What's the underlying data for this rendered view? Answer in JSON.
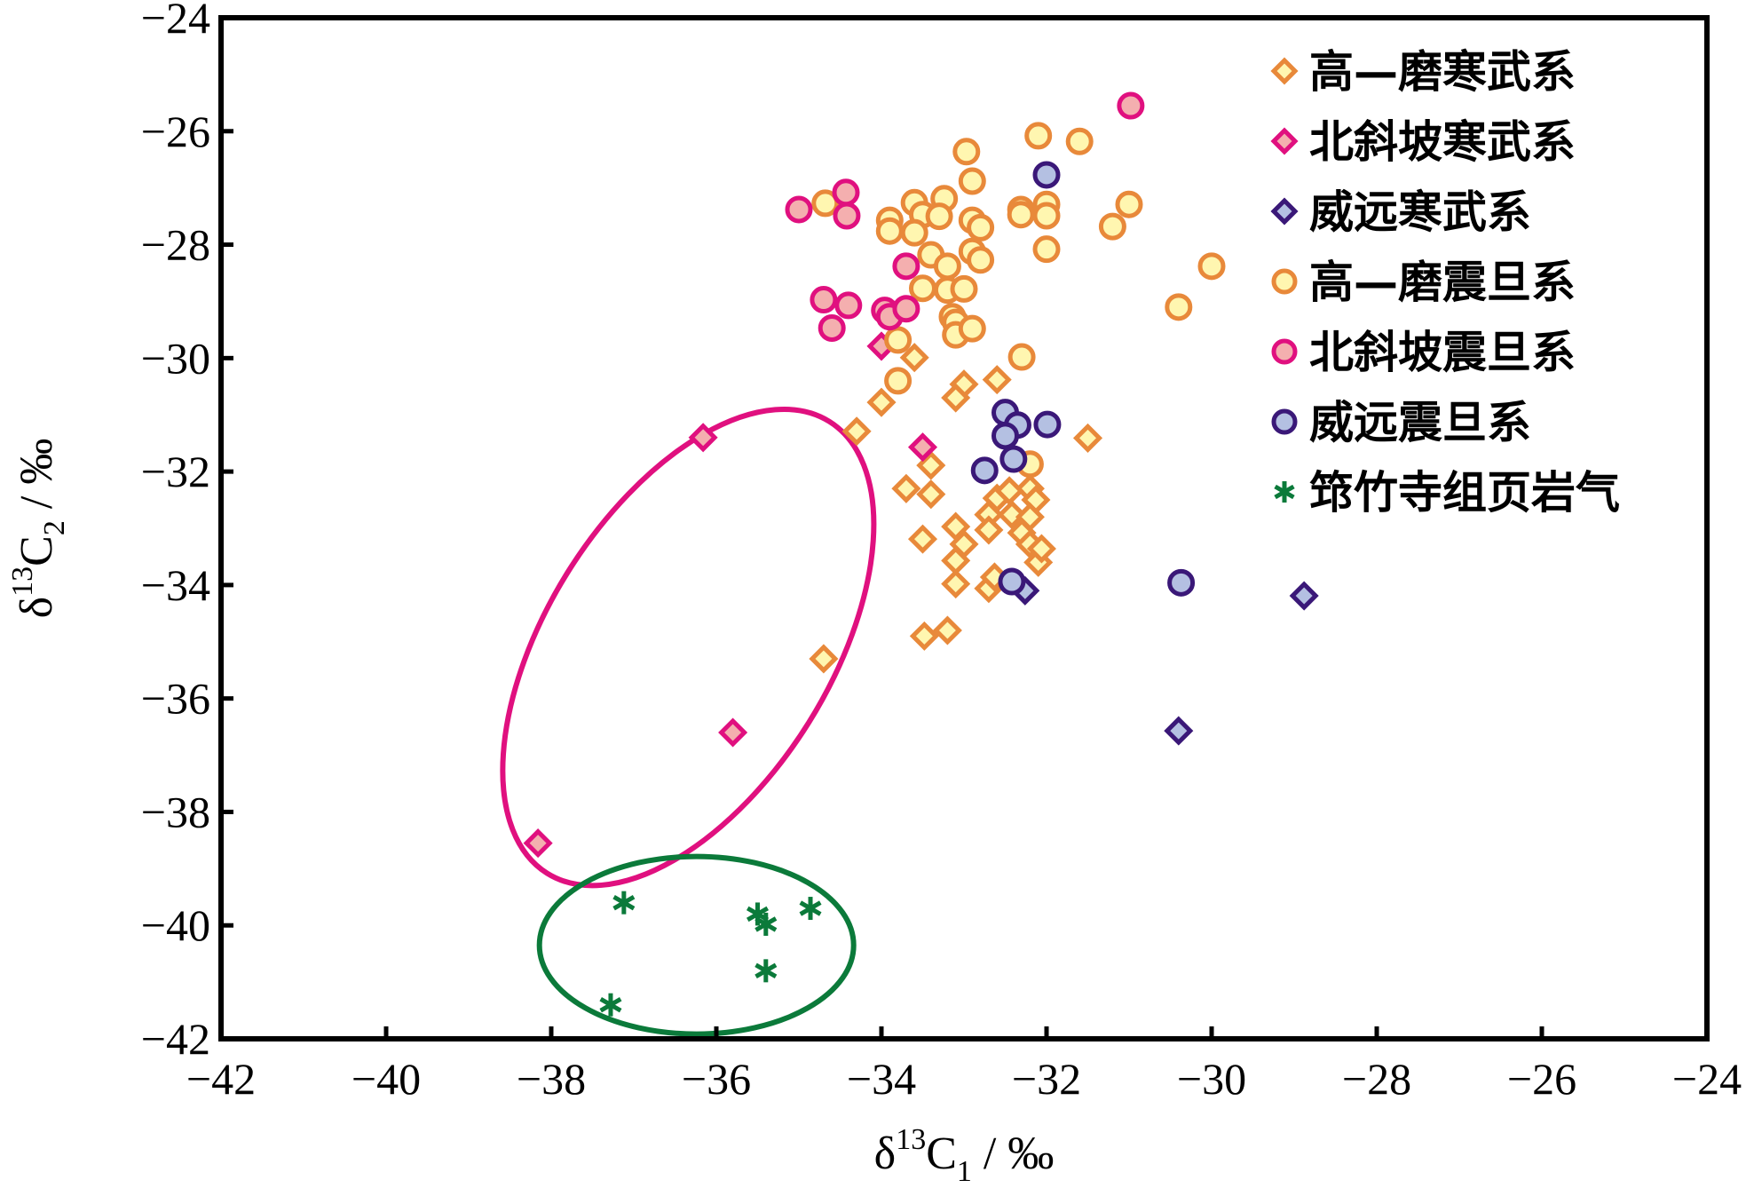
{
  "chart_data": {
    "type": "scatter",
    "title": "",
    "xlabel": {
      "main": "δ",
      "sup": "13",
      "base": "C",
      "sub": "1",
      "unit": " / ‰"
    },
    "ylabel": {
      "main": "δ",
      "sup": "13",
      "base": "C",
      "sub": "2",
      "unit": " / ‰"
    },
    "xlim": [
      -42,
      -24
    ],
    "ylim": [
      -42,
      -24
    ],
    "xticks": [
      -42,
      -40,
      -38,
      -36,
      -34,
      -32,
      -30,
      -28,
      -26,
      -24
    ],
    "yticks": [
      -42,
      -40,
      -38,
      -36,
      -34,
      -32,
      -30,
      -28,
      -26,
      -24
    ],
    "xtick_labels": [
      "−42",
      "−40",
      "−38",
      "−36",
      "−34",
      "−32",
      "−30",
      "−28",
      "−26",
      "−24"
    ],
    "ytick_labels": [
      "−42",
      "−40",
      "−38",
      "−36",
      "−34",
      "−32",
      "−30",
      "−28",
      "−26",
      "−24"
    ],
    "grid": false,
    "legend_position": "top-right",
    "series": [
      {
        "name": "高—磨寒武系",
        "marker": "diamond",
        "edge": "#E8893A",
        "fill": "#FFF6B0",
        "points": [
          [
            -33.6,
            -29.99
          ],
          [
            -34.0,
            -30.78
          ],
          [
            -34.3,
            -31.29
          ],
          [
            -33.0,
            -30.46
          ],
          [
            -33.1,
            -30.7
          ],
          [
            -32.6,
            -30.38
          ],
          [
            -33.4,
            -31.89
          ],
          [
            -33.7,
            -32.3
          ],
          [
            -33.4,
            -32.4
          ],
          [
            -33.5,
            -33.19
          ],
          [
            -33.1,
            -32.97
          ],
          [
            -33.0,
            -33.28
          ],
          [
            -33.1,
            -33.57
          ],
          [
            -33.1,
            -33.98
          ],
          [
            -31.5,
            -31.41
          ],
          [
            -32.2,
            -32.3
          ],
          [
            -32.6,
            -32.47
          ],
          [
            -32.45,
            -32.34
          ],
          [
            -32.13,
            -32.5
          ],
          [
            -32.7,
            -32.76
          ],
          [
            -32.42,
            -32.76
          ],
          [
            -32.2,
            -32.8
          ],
          [
            -32.7,
            -33.03
          ],
          [
            -32.3,
            -33.08
          ],
          [
            -32.2,
            -33.28
          ],
          [
            -32.1,
            -33.6
          ],
          [
            -32.06,
            -33.36
          ],
          [
            -32.7,
            -34.06
          ],
          [
            -32.63,
            -33.86
          ],
          [
            -34.7,
            -35.3
          ],
          [
            -33.48,
            -34.9
          ],
          [
            -33.2,
            -34.8
          ]
        ]
      },
      {
        "name": "北斜坡寒武系",
        "marker": "diamond",
        "edge": "#E0107F",
        "fill": "#F4AFAF",
        "points": [
          [
            -34.0,
            -29.79
          ],
          [
            -33.5,
            -31.57
          ],
          [
            -36.16,
            -31.4
          ],
          [
            -35.8,
            -36.6
          ],
          [
            -38.16,
            -38.55
          ]
        ]
      },
      {
        "name": "威远寒武系",
        "marker": "diamond",
        "edge": "#3A1878",
        "fill": "#B4C0E2",
        "points": [
          [
            -32.26,
            -34.1
          ],
          [
            -28.88,
            -34.19
          ],
          [
            -30.4,
            -36.57
          ]
        ]
      },
      {
        "name": "高—磨震旦系",
        "marker": "circle",
        "edge": "#E8893A",
        "fill": "#FFF6B0",
        "points": [
          [
            -32.1,
            -26.08
          ],
          [
            -31.6,
            -26.18
          ],
          [
            -32.97,
            -26.36
          ],
          [
            -32.9,
            -26.88
          ],
          [
            -34.68,
            -27.27
          ],
          [
            -33.9,
            -27.57
          ],
          [
            -33.9,
            -27.76
          ],
          [
            -33.6,
            -27.26
          ],
          [
            -33.5,
            -27.47
          ],
          [
            -33.24,
            -27.19
          ],
          [
            -33.3,
            -27.5
          ],
          [
            -33.6,
            -27.79
          ],
          [
            -32.9,
            -27.57
          ],
          [
            -32.8,
            -27.7
          ],
          [
            -32.31,
            -27.38
          ],
          [
            -32.31,
            -27.47
          ],
          [
            -32.0,
            -27.29
          ],
          [
            -32.0,
            -27.49
          ],
          [
            -31.0,
            -27.29
          ],
          [
            -31.2,
            -27.68
          ],
          [
            -32.0,
            -28.08
          ],
          [
            -33.4,
            -28.18
          ],
          [
            -33.2,
            -28.38
          ],
          [
            -32.9,
            -28.12
          ],
          [
            -32.8,
            -28.27
          ],
          [
            -33.5,
            -28.77
          ],
          [
            -33.2,
            -28.8
          ],
          [
            -33.0,
            -28.78
          ],
          [
            -30.0,
            -28.38
          ],
          [
            -30.4,
            -29.1
          ],
          [
            -33.14,
            -29.27
          ],
          [
            -33.1,
            -29.37
          ],
          [
            -33.1,
            -29.59
          ],
          [
            -32.9,
            -29.48
          ],
          [
            -33.8,
            -29.68
          ],
          [
            -32.3,
            -29.98
          ],
          [
            -33.8,
            -30.4
          ],
          [
            -32.2,
            -31.87
          ]
        ]
      },
      {
        "name": "北斜坡震旦系",
        "marker": "circle",
        "edge": "#E0107F",
        "fill": "#F4AFAF",
        "points": [
          [
            -30.98,
            -25.55
          ],
          [
            -35.0,
            -27.38
          ],
          [
            -34.43,
            -27.08
          ],
          [
            -34.42,
            -27.49
          ],
          [
            -33.7,
            -28.38
          ],
          [
            -34.7,
            -28.97
          ],
          [
            -34.4,
            -29.07
          ],
          [
            -34.6,
            -29.47
          ],
          [
            -33.96,
            -29.16
          ],
          [
            -33.9,
            -29.27
          ],
          [
            -33.7,
            -29.13
          ]
        ]
      },
      {
        "name": "威远震旦系",
        "marker": "circle",
        "edge": "#3A1878",
        "fill": "#B4C0E2",
        "points": [
          [
            -32.0,
            -26.77
          ],
          [
            -32.5,
            -30.96
          ],
          [
            -32.35,
            -31.18
          ],
          [
            -32.5,
            -31.37
          ],
          [
            -31.99,
            -31.17
          ],
          [
            -32.4,
            -31.78
          ],
          [
            -32.75,
            -31.98
          ],
          [
            -32.42,
            -33.94
          ],
          [
            -30.37,
            -33.96
          ]
        ]
      },
      {
        "name": "筇竹寺组页岩气",
        "marker": "asterisk",
        "edge": "#0B7A3A",
        "fill": "#0B7A3A",
        "points": [
          [
            -37.12,
            -39.6
          ],
          [
            -35.5,
            -39.8
          ],
          [
            -35.4,
            -39.98
          ],
          [
            -34.86,
            -39.7
          ],
          [
            -35.4,
            -40.8
          ],
          [
            -37.28,
            -41.4
          ]
        ]
      }
    ],
    "annotations": [
      {
        "type": "ellipse",
        "color": "#E0107F",
        "center": [
          -36.34,
          -35.1
        ],
        "note": "encloses 北斜坡寒武系 outliers"
      },
      {
        "type": "ellipse",
        "color": "#0B7A3A",
        "center": [
          -36.24,
          -40.35
        ],
        "note": "encloses 筇竹寺组页岩气"
      }
    ]
  }
}
